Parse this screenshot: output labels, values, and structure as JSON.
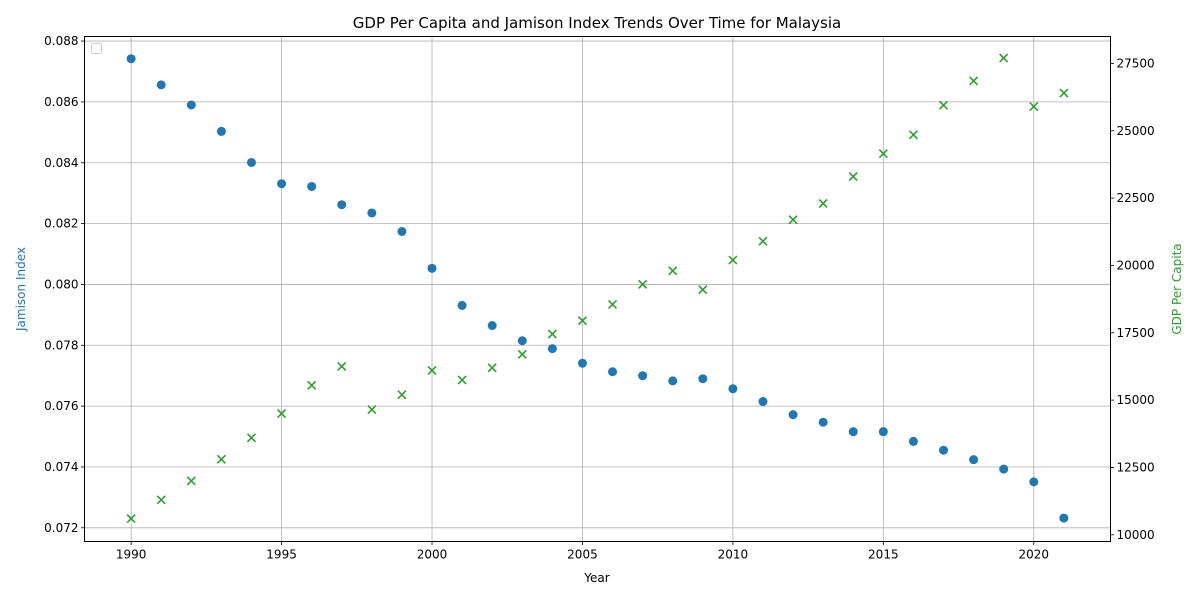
{
  "chart_data": {
    "type": "scatter",
    "title": "GDP Per Capita and Jamison Index Trends Over Time for Malaysia",
    "xlabel": "Year",
    "ylabel_left": "Jamison Index",
    "ylabel_right": "GDP Per Capita",
    "xlim": [
      1988.45,
      2022.55
    ],
    "ylim_left": [
      0.07155,
      0.08815
    ],
    "ylim_right": [
      9750,
      28500
    ],
    "x_ticks": [
      1990,
      1995,
      2000,
      2005,
      2010,
      2015,
      2020
    ],
    "y_left_ticks": [
      "0.072",
      "0.074",
      "0.076",
      "0.078",
      "0.080",
      "0.082",
      "0.084",
      "0.086",
      "0.088"
    ],
    "y_right_ticks": [
      "10000",
      "12500",
      "15000",
      "17500",
      "20000",
      "22500",
      "25000",
      "27500"
    ],
    "grid": true,
    "legend": "top-left (empty)",
    "colors": {
      "jamison": "#1f77b4",
      "gdp": "#2ca02c"
    },
    "x": [
      1990,
      1991,
      1992,
      1993,
      1994,
      1995,
      1996,
      1997,
      1998,
      1999,
      2000,
      2001,
      2002,
      2003,
      2004,
      2005,
      2006,
      2007,
      2008,
      2009,
      2010,
      2011,
      2012,
      2013,
      2014,
      2015,
      2016,
      2017,
      2018,
      2019,
      2020,
      2021
    ],
    "series": [
      {
        "axis": "left",
        "marker": "circle",
        "values": [
          0.08742,
          0.08656,
          0.0859,
          0.08503,
          0.08401,
          0.08331,
          0.08322,
          0.08262,
          0.08235,
          0.08174,
          0.08053,
          0.07931,
          0.07865,
          0.07815,
          0.07789,
          0.07741,
          0.07713,
          0.077,
          0.07683,
          0.0769,
          0.07657,
          0.07615,
          0.07572,
          0.07547,
          0.07516,
          0.07516,
          0.07484,
          0.07455,
          0.07424,
          0.07393,
          0.07351,
          0.07232
        ]
      },
      {
        "axis": "right",
        "marker": "x",
        "values": [
          10600,
          11300,
          12000,
          12800,
          13600,
          14500,
          15550,
          16250,
          14650,
          15200,
          16100,
          15750,
          16200,
          16700,
          17450,
          17950,
          18550,
          19300,
          19800,
          19100,
          20200,
          20900,
          21700,
          22300,
          23300,
          24150,
          24850,
          25950,
          26850,
          27700,
          25900,
          26400
        ]
      }
    ]
  }
}
